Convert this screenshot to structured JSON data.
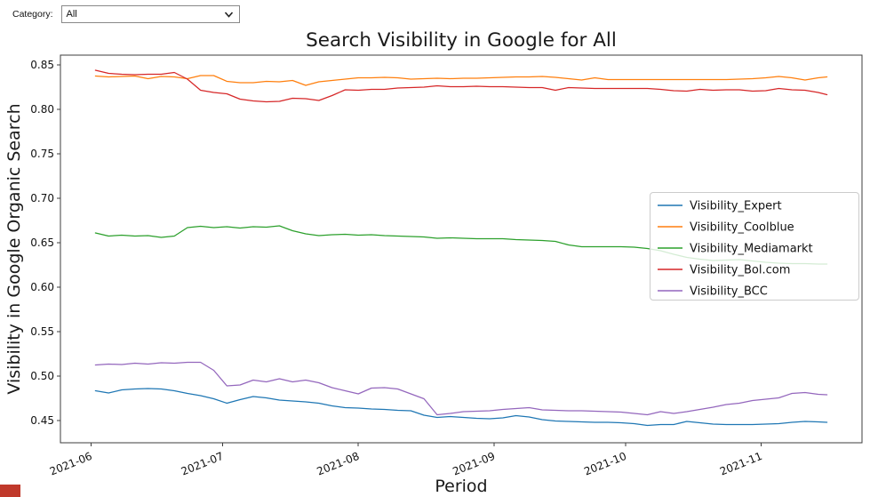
{
  "controls": {
    "category_label": "Category:",
    "category_value": "All"
  },
  "corner_marker": {
    "color": "#c0392b"
  },
  "chart_data": {
    "type": "line",
    "title": "Search Visibility in Google for All",
    "xlabel": "Period",
    "ylabel": "Visibility in Google Organic Search",
    "grid": false,
    "legend_position": "center right",
    "x_tick_labels": [
      "2021-06",
      "2021-07",
      "2021-08",
      "2021-09",
      "2021-10",
      "2021-11"
    ],
    "y_ticks": [
      0.45,
      0.5,
      0.55,
      0.6,
      0.65,
      0.7,
      0.75,
      0.8,
      0.85
    ],
    "ylim": [
      0.425,
      0.861
    ],
    "xlim_dates": [
      "2021-05-25",
      "2021-11-24"
    ],
    "x": [
      "2021-06-02",
      "2021-06-05",
      "2021-06-08",
      "2021-06-11",
      "2021-06-14",
      "2021-06-17",
      "2021-06-20",
      "2021-06-23",
      "2021-06-26",
      "2021-06-29",
      "2021-07-02",
      "2021-07-05",
      "2021-07-08",
      "2021-07-11",
      "2021-07-14",
      "2021-07-17",
      "2021-07-20",
      "2021-07-23",
      "2021-07-26",
      "2021-07-29",
      "2021-08-01",
      "2021-08-04",
      "2021-08-07",
      "2021-08-10",
      "2021-08-13",
      "2021-08-16",
      "2021-08-19",
      "2021-08-22",
      "2021-08-25",
      "2021-08-28",
      "2021-08-31",
      "2021-09-03",
      "2021-09-06",
      "2021-09-09",
      "2021-09-12",
      "2021-09-15",
      "2021-09-18",
      "2021-09-21",
      "2021-09-24",
      "2021-09-27",
      "2021-09-30",
      "2021-10-03",
      "2021-10-06",
      "2021-10-09",
      "2021-10-12",
      "2021-10-15",
      "2021-10-18",
      "2021-10-21",
      "2021-10-24",
      "2021-10-27",
      "2021-10-30",
      "2021-11-02",
      "2021-11-05",
      "2021-11-08",
      "2021-11-11",
      "2021-11-14",
      "2021-11-16"
    ],
    "series": [
      {
        "name": "Visibility_Expert",
        "color": "#1f77b4",
        "values": [
          0.4835,
          0.481,
          0.4845,
          0.4855,
          0.486,
          0.4855,
          0.4835,
          0.4805,
          0.478,
          0.4745,
          0.4695,
          0.4735,
          0.477,
          0.4755,
          0.473,
          0.472,
          0.471,
          0.4695,
          0.4665,
          0.4645,
          0.464,
          0.463,
          0.4625,
          0.4615,
          0.461,
          0.456,
          0.4535,
          0.4545,
          0.4535,
          0.4525,
          0.452,
          0.453,
          0.4555,
          0.454,
          0.451,
          0.4495,
          0.449,
          0.4485,
          0.448,
          0.448,
          0.4475,
          0.4465,
          0.4445,
          0.4455,
          0.4455,
          0.449,
          0.4475,
          0.446,
          0.4455,
          0.4455,
          0.4455,
          0.446,
          0.4465,
          0.448,
          0.449,
          0.4485,
          0.448
        ]
      },
      {
        "name": "Visibility_Coolblue",
        "color": "#ff7f0e",
        "values": [
          0.8375,
          0.8365,
          0.837,
          0.8375,
          0.8345,
          0.837,
          0.8365,
          0.8345,
          0.838,
          0.838,
          0.8315,
          0.83,
          0.83,
          0.8315,
          0.831,
          0.8325,
          0.827,
          0.831,
          0.8325,
          0.834,
          0.8355,
          0.8355,
          0.836,
          0.8355,
          0.834,
          0.8345,
          0.835,
          0.8345,
          0.835,
          0.835,
          0.8355,
          0.836,
          0.8365,
          0.8365,
          0.837,
          0.836,
          0.8345,
          0.833,
          0.8355,
          0.8335,
          0.8335,
          0.8335,
          0.8335,
          0.8335,
          0.8335,
          0.8335,
          0.8335,
          0.8335,
          0.8335,
          0.834,
          0.8345,
          0.8355,
          0.837,
          0.8355,
          0.833,
          0.8355,
          0.8365
        ]
      },
      {
        "name": "Visibility_Mediamarkt",
        "color": "#2ca02c",
        "values": [
          0.661,
          0.6575,
          0.6585,
          0.6575,
          0.658,
          0.656,
          0.6575,
          0.667,
          0.6685,
          0.667,
          0.668,
          0.6665,
          0.668,
          0.6675,
          0.669,
          0.6635,
          0.66,
          0.658,
          0.659,
          0.6595,
          0.6585,
          0.659,
          0.658,
          0.6575,
          0.657,
          0.6565,
          0.655,
          0.6555,
          0.655,
          0.6545,
          0.6545,
          0.6545,
          0.6535,
          0.653,
          0.6525,
          0.6515,
          0.6475,
          0.6455,
          0.6455,
          0.6455,
          0.6455,
          0.645,
          0.6435,
          0.641,
          0.637,
          0.6335,
          0.6315,
          0.63,
          0.6305,
          0.631,
          0.6295,
          0.628,
          0.627,
          0.6265,
          0.6265,
          0.626,
          0.626
        ]
      },
      {
        "name": "Visibility_Bol.com",
        "color": "#d62728",
        "values": [
          0.844,
          0.8405,
          0.8395,
          0.839,
          0.8395,
          0.8395,
          0.8415,
          0.834,
          0.8215,
          0.819,
          0.8175,
          0.8115,
          0.8095,
          0.8085,
          0.809,
          0.8125,
          0.812,
          0.81,
          0.8155,
          0.822,
          0.8215,
          0.8225,
          0.8225,
          0.824,
          0.8245,
          0.825,
          0.8265,
          0.8255,
          0.8255,
          0.826,
          0.8255,
          0.8255,
          0.825,
          0.8245,
          0.8245,
          0.8215,
          0.8245,
          0.824,
          0.8235,
          0.8235,
          0.8235,
          0.8235,
          0.8235,
          0.8225,
          0.821,
          0.8205,
          0.8225,
          0.8215,
          0.822,
          0.822,
          0.8205,
          0.821,
          0.8235,
          0.822,
          0.8215,
          0.819,
          0.8165
        ]
      },
      {
        "name": "Visibility_BCC",
        "color": "#9467bd",
        "values": [
          0.5125,
          0.5135,
          0.513,
          0.5145,
          0.5135,
          0.515,
          0.5145,
          0.5155,
          0.5155,
          0.5065,
          0.489,
          0.49,
          0.4955,
          0.4935,
          0.497,
          0.4935,
          0.4955,
          0.4925,
          0.487,
          0.4835,
          0.48,
          0.4865,
          0.487,
          0.4855,
          0.48,
          0.4745,
          0.4565,
          0.458,
          0.46,
          0.4605,
          0.461,
          0.4625,
          0.4635,
          0.4645,
          0.462,
          0.4615,
          0.461,
          0.461,
          0.4605,
          0.46,
          0.4595,
          0.458,
          0.4565,
          0.46,
          0.458,
          0.46,
          0.4625,
          0.465,
          0.468,
          0.4695,
          0.4725,
          0.474,
          0.4755,
          0.4805,
          0.4815,
          0.4795,
          0.479
        ]
      }
    ]
  }
}
